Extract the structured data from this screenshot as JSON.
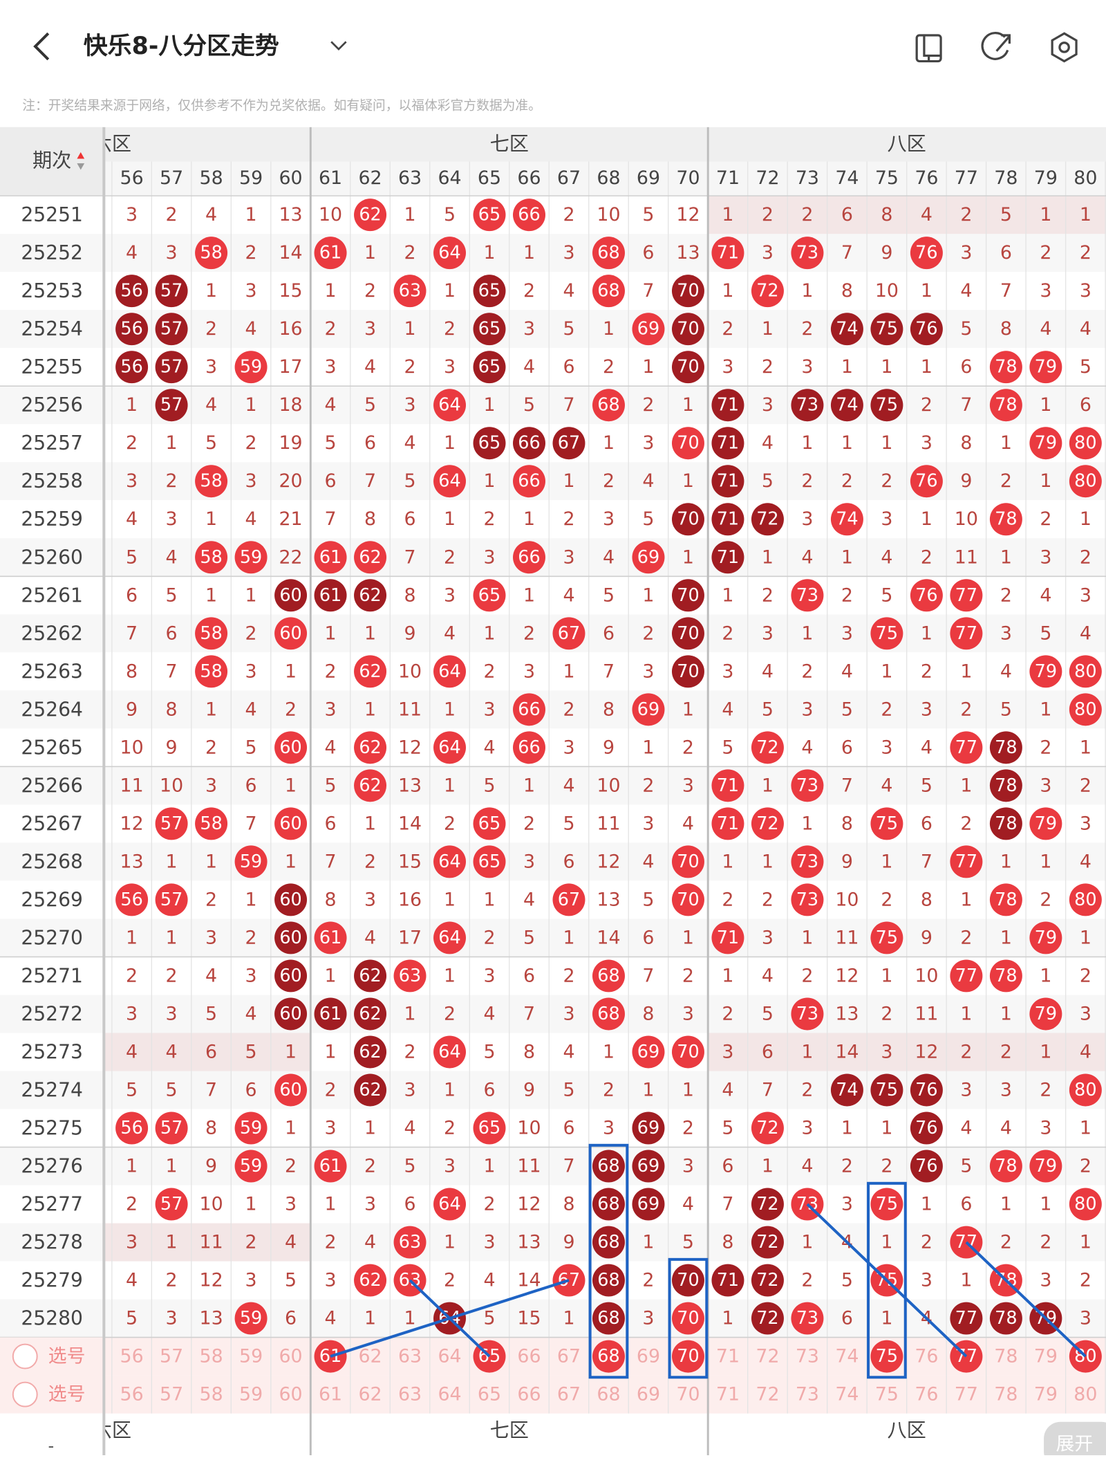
{
  "header": {
    "title": "快乐8-八分区走势"
  },
  "note": "注：开奖结果来源于网络，仅供参考不作为兑奖依据。如有疑问，以福体彩官方数据为准。",
  "table": {
    "period_header": "期次",
    "zones": [
      "六区",
      "七区",
      "八区"
    ],
    "columns": [
      56,
      57,
      58,
      59,
      60,
      61,
      62,
      63,
      64,
      65,
      66,
      67,
      68,
      69,
      70,
      71,
      72,
      73,
      74,
      75,
      76,
      77,
      78,
      79,
      80
    ],
    "rows": [
      {
        "period": 25251,
        "cells": [
          3,
          2,
          4,
          1,
          13,
          10,
          62,
          1,
          5,
          65,
          66,
          2,
          10,
          5,
          12,
          1,
          2,
          2,
          6,
          8,
          4,
          2,
          5,
          1,
          1
        ],
        "dark": []
      },
      {
        "period": 25252,
        "cells": [
          4,
          3,
          58,
          2,
          14,
          61,
          1,
          2,
          64,
          1,
          1,
          3,
          68,
          6,
          13,
          71,
          3,
          73,
          7,
          9,
          76,
          3,
          6,
          2,
          2
        ],
        "dark": []
      },
      {
        "period": 25253,
        "cells": [
          56,
          57,
          1,
          3,
          15,
          1,
          2,
          63,
          1,
          65,
          2,
          4,
          68,
          7,
          70,
          1,
          72,
          1,
          8,
          10,
          1,
          4,
          7,
          3,
          3
        ],
        "dark": [
          56,
          57,
          65,
          70
        ]
      },
      {
        "period": 25254,
        "cells": [
          56,
          57,
          2,
          4,
          16,
          2,
          3,
          1,
          2,
          65,
          3,
          5,
          1,
          69,
          70,
          2,
          1,
          2,
          74,
          75,
          76,
          5,
          8,
          4,
          4
        ],
        "dark": [
          56,
          57,
          65,
          70,
          74,
          75,
          76
        ]
      },
      {
        "period": 25255,
        "cells": [
          56,
          57,
          3,
          59,
          17,
          3,
          4,
          2,
          3,
          65,
          4,
          6,
          2,
          1,
          70,
          3,
          2,
          3,
          1,
          1,
          1,
          6,
          78,
          79,
          5
        ],
        "dark": [
          56,
          57,
          65,
          70
        ]
      },
      {
        "period": 25256,
        "cells": [
          1,
          57,
          4,
          1,
          18,
          4,
          5,
          3,
          64,
          1,
          5,
          7,
          68,
          2,
          1,
          71,
          3,
          73,
          74,
          75,
          2,
          7,
          78,
          1,
          6
        ],
        "dark": [
          57,
          71,
          73,
          74,
          75
        ]
      },
      {
        "period": 25257,
        "cells": [
          2,
          1,
          5,
          2,
          19,
          5,
          6,
          4,
          1,
          65,
          66,
          67,
          1,
          3,
          70,
          71,
          4,
          1,
          1,
          1,
          3,
          8,
          1,
          79,
          80
        ],
        "dark": [
          65,
          66,
          67,
          71
        ]
      },
      {
        "period": 25258,
        "cells": [
          3,
          2,
          58,
          3,
          20,
          6,
          7,
          5,
          64,
          1,
          66,
          1,
          2,
          4,
          1,
          71,
          5,
          2,
          2,
          2,
          76,
          9,
          2,
          1,
          80
        ],
        "dark": [
          71
        ]
      },
      {
        "period": 25259,
        "cells": [
          4,
          3,
          1,
          4,
          21,
          7,
          8,
          6,
          1,
          2,
          1,
          2,
          3,
          5,
          70,
          71,
          72,
          3,
          74,
          3,
          1,
          10,
          78,
          2,
          1
        ],
        "dark": [
          70,
          71,
          72
        ]
      },
      {
        "period": 25260,
        "cells": [
          5,
          4,
          58,
          59,
          22,
          61,
          62,
          7,
          2,
          3,
          66,
          3,
          4,
          69,
          1,
          71,
          1,
          4,
          1,
          4,
          2,
          11,
          1,
          3,
          2
        ],
        "dark": [
          71
        ]
      },
      {
        "period": 25261,
        "cells": [
          6,
          5,
          1,
          1,
          60,
          61,
          62,
          8,
          3,
          65,
          1,
          4,
          5,
          1,
          70,
          1,
          2,
          73,
          2,
          5,
          76,
          77,
          2,
          4,
          3
        ],
        "dark": [
          60,
          61,
          62,
          70
        ]
      },
      {
        "period": 25262,
        "cells": [
          7,
          6,
          58,
          2,
          60,
          1,
          1,
          9,
          4,
          1,
          2,
          67,
          6,
          2,
          70,
          2,
          3,
          1,
          3,
          75,
          1,
          77,
          3,
          5,
          4
        ],
        "dark": [
          70
        ]
      },
      {
        "period": 25263,
        "cells": [
          8,
          7,
          58,
          3,
          1,
          2,
          62,
          10,
          64,
          2,
          3,
          1,
          7,
          3,
          70,
          3,
          4,
          2,
          4,
          1,
          2,
          1,
          4,
          79,
          80
        ],
        "dark": [
          70
        ]
      },
      {
        "period": 25264,
        "cells": [
          9,
          8,
          1,
          4,
          2,
          3,
          1,
          11,
          1,
          3,
          66,
          2,
          8,
          69,
          1,
          4,
          5,
          3,
          5,
          2,
          3,
          2,
          5,
          1,
          80
        ],
        "dark": []
      },
      {
        "period": 25265,
        "cells": [
          10,
          9,
          2,
          5,
          60,
          4,
          62,
          12,
          64,
          4,
          66,
          3,
          9,
          1,
          2,
          5,
          72,
          4,
          6,
          3,
          4,
          77,
          78,
          2,
          1
        ],
        "dark": [
          78
        ]
      },
      {
        "period": 25266,
        "cells": [
          11,
          10,
          3,
          6,
          1,
          5,
          62,
          13,
          1,
          5,
          1,
          4,
          10,
          2,
          3,
          71,
          1,
          73,
          7,
          4,
          5,
          1,
          78,
          3,
          2
        ],
        "dark": [
          78
        ]
      },
      {
        "period": 25267,
        "cells": [
          12,
          57,
          58,
          7,
          60,
          6,
          1,
          14,
          2,
          65,
          2,
          5,
          11,
          3,
          4,
          71,
          72,
          1,
          8,
          75,
          6,
          2,
          78,
          79,
          3
        ],
        "dark": [
          78
        ]
      },
      {
        "period": 25268,
        "cells": [
          13,
          1,
          1,
          59,
          1,
          7,
          2,
          15,
          64,
          65,
          3,
          6,
          12,
          4,
          70,
          1,
          1,
          73,
          9,
          1,
          7,
          77,
          1,
          1,
          4
        ],
        "dark": []
      },
      {
        "period": 25269,
        "cells": [
          56,
          57,
          2,
          1,
          60,
          8,
          3,
          16,
          1,
          1,
          4,
          67,
          13,
          5,
          70,
          2,
          2,
          73,
          10,
          2,
          8,
          1,
          78,
          2,
          80
        ],
        "dark": [
          60
        ]
      },
      {
        "period": 25270,
        "cells": [
          1,
          1,
          3,
          2,
          60,
          61,
          4,
          17,
          64,
          2,
          5,
          1,
          14,
          6,
          1,
          71,
          3,
          1,
          11,
          75,
          9,
          2,
          1,
          79,
          1
        ],
        "dark": [
          60
        ]
      },
      {
        "period": 25271,
        "cells": [
          2,
          2,
          4,
          3,
          60,
          1,
          62,
          63,
          1,
          3,
          6,
          2,
          68,
          7,
          2,
          1,
          4,
          2,
          12,
          1,
          10,
          77,
          78,
          1,
          2
        ],
        "dark": [
          60,
          62
        ]
      },
      {
        "period": 25272,
        "cells": [
          3,
          3,
          5,
          4,
          60,
          61,
          62,
          1,
          2,
          4,
          7,
          3,
          68,
          8,
          3,
          2,
          5,
          73,
          13,
          2,
          11,
          1,
          1,
          79,
          3
        ],
        "dark": [
          60,
          61,
          62
        ]
      },
      {
        "period": 25273,
        "cells": [
          4,
          4,
          6,
          5,
          1,
          1,
          62,
          2,
          64,
          5,
          8,
          4,
          1,
          69,
          70,
          3,
          6,
          1,
          14,
          3,
          12,
          2,
          2,
          1,
          4
        ],
        "dark": [
          62
        ]
      },
      {
        "period": 25274,
        "cells": [
          5,
          5,
          7,
          6,
          60,
          2,
          62,
          3,
          1,
          6,
          9,
          5,
          2,
          1,
          1,
          4,
          7,
          2,
          74,
          75,
          76,
          3,
          3,
          2,
          80
        ],
        "dark": [
          62,
          74,
          75,
          76
        ]
      },
      {
        "period": 25275,
        "cells": [
          56,
          57,
          8,
          59,
          1,
          3,
          1,
          4,
          2,
          65,
          10,
          6,
          3,
          69,
          2,
          5,
          72,
          3,
          1,
          1,
          76,
          4,
          4,
          3,
          1
        ],
        "dark": [
          69,
          76
        ]
      },
      {
        "period": 25276,
        "cells": [
          1,
          1,
          9,
          59,
          2,
          61,
          2,
          5,
          3,
          1,
          11,
          7,
          68,
          69,
          3,
          6,
          1,
          4,
          2,
          2,
          76,
          5,
          78,
          79,
          2
        ],
        "dark": [
          68,
          69,
          76
        ]
      },
      {
        "period": 25277,
        "cells": [
          2,
          57,
          10,
          1,
          3,
          1,
          3,
          6,
          64,
          2,
          12,
          8,
          68,
          69,
          4,
          7,
          72,
          73,
          3,
          75,
          1,
          6,
          1,
          1,
          80
        ],
        "dark": [
          68,
          69,
          72
        ]
      },
      {
        "period": 25278,
        "cells": [
          3,
          1,
          11,
          2,
          4,
          2,
          4,
          63,
          1,
          3,
          13,
          9,
          68,
          1,
          5,
          8,
          72,
          1,
          4,
          1,
          2,
          77,
          2,
          2,
          1
        ],
        "dark": [
          68,
          72
        ]
      },
      {
        "period": 25279,
        "cells": [
          4,
          2,
          12,
          3,
          5,
          3,
          62,
          63,
          2,
          4,
          14,
          67,
          68,
          2,
          70,
          71,
          72,
          2,
          5,
          75,
          3,
          1,
          78,
          3,
          2
        ],
        "dark": [
          68,
          70,
          71,
          72
        ]
      },
      {
        "period": 25280,
        "cells": [
          5,
          3,
          13,
          59,
          6,
          4,
          1,
          1,
          64,
          5,
          15,
          1,
          68,
          3,
          70,
          1,
          72,
          73,
          6,
          1,
          4,
          77,
          78,
          79,
          3
        ],
        "dark": [
          64,
          68,
          72,
          77,
          78,
          79
        ]
      }
    ],
    "select_rows": [
      {
        "label": "选号",
        "picked": [
          61,
          65,
          68,
          70,
          75,
          77,
          80
        ]
      },
      {
        "label": "选号",
        "picked": []
      }
    ]
  },
  "expand_button": "展开",
  "bottom_mark": "-"
}
